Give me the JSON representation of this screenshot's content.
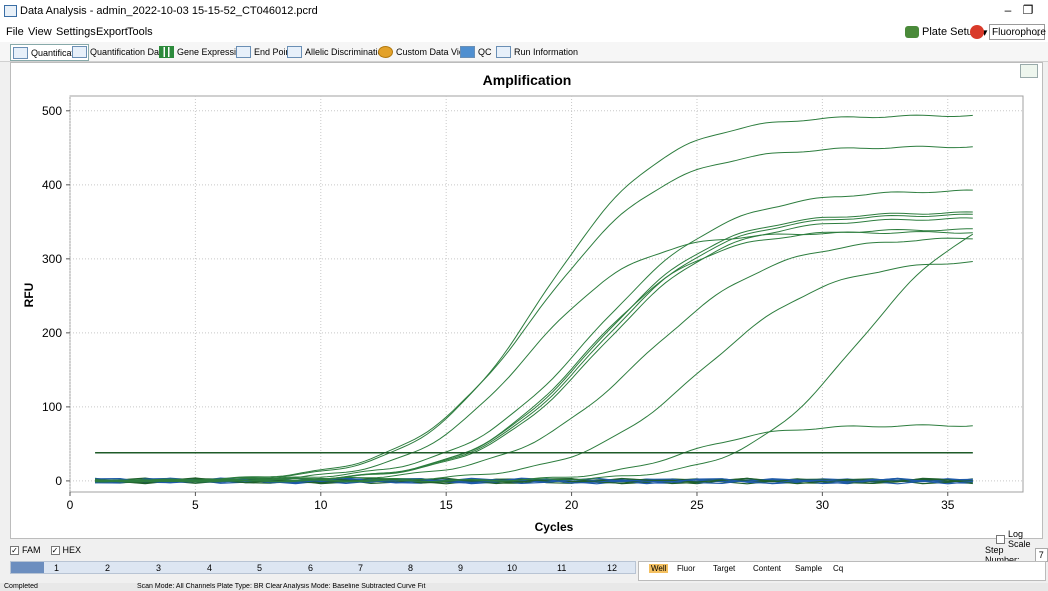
{
  "window": {
    "title": "Data Analysis - admin_2022-10-03 15-15-52_CT046012.pcrd",
    "minimize": "–",
    "maximize": "❐"
  },
  "menu": [
    "File",
    "View",
    "Settings",
    "Export",
    "Tools"
  ],
  "plate_setup": {
    "label": "Plate Setup",
    "arrow": "▾"
  },
  "fluorophore": {
    "value": "Fluorophore",
    "chevron": "⌄"
  },
  "tabs": [
    "Quantification",
    "Quantification Data",
    "Gene Expression",
    "End Point",
    "Allelic Discrimination",
    "Custom Data View",
    "QC",
    "Run Information"
  ],
  "colors": {
    "curve": "#2d7d3e",
    "curve_dark": "#1f5f2c",
    "baseline_blue": "#1f5aa8",
    "threshold": "#1e5a28"
  },
  "chart_data": {
    "type": "line",
    "title": "Amplification",
    "xlabel": "Cycles",
    "ylabel": "RFU",
    "xlim": [
      0,
      38
    ],
    "ylim": [
      -15,
      520
    ],
    "xticks": [
      "0",
      "5",
      "10",
      "15",
      "20",
      "25",
      "30",
      "35"
    ],
    "yticks": [
      "0",
      "100",
      "200",
      "300",
      "400",
      "500"
    ],
    "xtick_values": [
      0,
      5,
      10,
      15,
      20,
      25,
      30,
      35
    ],
    "ytick_values": [
      0,
      100,
      200,
      300,
      400,
      500
    ],
    "grid": true,
    "threshold": 38,
    "cycles": [
      1,
      36
    ],
    "series": [
      {
        "plateau": 494,
        "ct": 18.8,
        "slope": 2.4
      },
      {
        "plateau": 452,
        "ct": 18.6,
        "slope": 2.5
      },
      {
        "plateau": 393,
        "ct": 20.8,
        "slope": 2.6
      },
      {
        "plateau": 363,
        "ct": 20.9,
        "slope": 2.4
      },
      {
        "plateau": 360,
        "ct": 21.0,
        "slope": 2.4
      },
      {
        "plateau": 355,
        "ct": 21.1,
        "slope": 2.4
      },
      {
        "plateau": 336,
        "ct": 18.2,
        "slope": 2.2
      },
      {
        "plateau": 340,
        "ct": 20.5,
        "slope": 2.3
      },
      {
        "plateau": 330,
        "ct": 22.8,
        "slope": 2.6
      },
      {
        "plateau": 300,
        "ct": 25.2,
        "slope": 2.5
      },
      {
        "plateau": 380,
        "ct": 31.5,
        "slope": 2.3
      },
      {
        "plateau": 75,
        "ct": 24.5,
        "slope": 1.8
      }
    ],
    "baseline_traces": 10
  },
  "log_scale": "Log Scale",
  "filters": [
    {
      "label": "FAM",
      "checked": "✓"
    },
    {
      "label": "HEX",
      "checked": "✓"
    }
  ],
  "step": {
    "label": "Step Number:",
    "value": "7"
  },
  "plate_columns": [
    "1",
    "2",
    "3",
    "4",
    "5",
    "6",
    "7",
    "8",
    "9",
    "10",
    "11",
    "12"
  ],
  "well_table": {
    "headers": [
      "Well",
      "Fluor",
      "Target",
      "Content",
      "Sample",
      "Cq"
    ]
  },
  "status": {
    "state": "Completed",
    "scan_mode": "Scan Mode: All Channels",
    "plate_type": "Plate Type: BR Clear",
    "analysis_mode": "Analysis Mode: Baseline Subtracted Curve Fit"
  }
}
